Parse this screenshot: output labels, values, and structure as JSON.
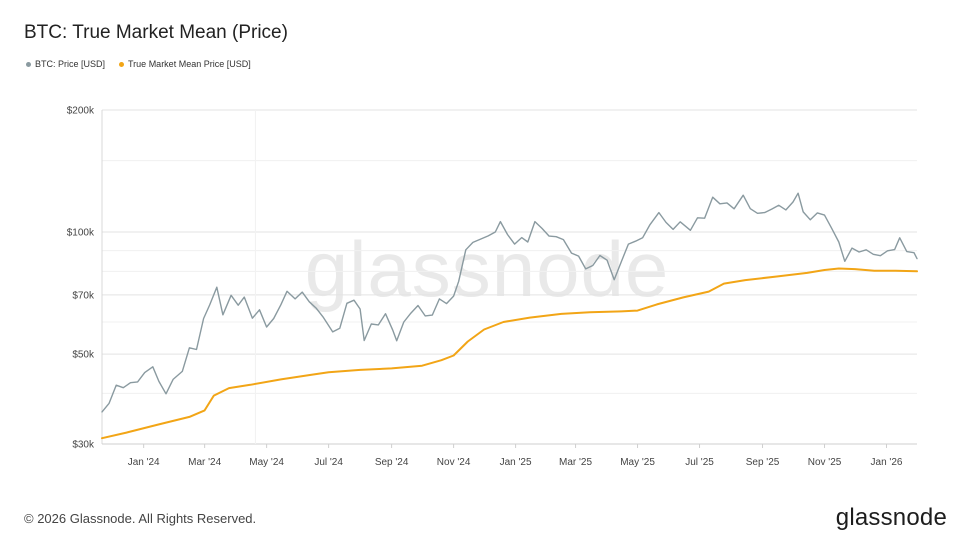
{
  "title": "BTC: True Market Mean (Price)",
  "legend": [
    {
      "label": "BTC: Price [USD]",
      "color": "#8a9aa0"
    },
    {
      "label": "True Market Mean Price [USD]",
      "color": "#f2a516"
    }
  ],
  "watermark": "glassnode",
  "footer": {
    "copyright": "© 2026 Glassnode. All Rights Reserved.",
    "brand": "glassnode"
  },
  "chart_data": {
    "type": "line",
    "title": "BTC: True Market Mean (Price)",
    "xlabel": "",
    "ylabel": "",
    "y_scale": "log",
    "ylim": [
      30000,
      200000
    ],
    "y_ticks": [
      {
        "value": 30000,
        "label": "$30k"
      },
      {
        "value": 50000,
        "label": "$50k"
      },
      {
        "value": 70000,
        "label": "$70k"
      },
      {
        "value": 100000,
        "label": "$100k"
      },
      {
        "value": 200000,
        "label": "$200k"
      }
    ],
    "xlim": [
      "2023-11-21",
      "2026-01-31"
    ],
    "x_ticks": [
      {
        "date": "2024-01-01",
        "label": "Jan '24"
      },
      {
        "date": "2024-03-01",
        "label": "Mar '24"
      },
      {
        "date": "2024-05-01",
        "label": "May '24"
      },
      {
        "date": "2024-07-01",
        "label": "Jul '24"
      },
      {
        "date": "2024-09-01",
        "label": "Sep '24"
      },
      {
        "date": "2024-11-01",
        "label": "Nov '24"
      },
      {
        "date": "2025-01-01",
        "label": "Jan '25"
      },
      {
        "date": "2025-03-01",
        "label": "Mar '25"
      },
      {
        "date": "2025-05-01",
        "label": "May '25"
      },
      {
        "date": "2025-07-01",
        "label": "Jul '25"
      },
      {
        "date": "2025-09-01",
        "label": "Sep '25"
      },
      {
        "date": "2025-11-01",
        "label": "Nov '25"
      },
      {
        "date": "2026-01-01",
        "label": "Jan '26"
      }
    ],
    "grid": true,
    "legend_position": "top-left",
    "series": [
      {
        "name": "BTC: Price [USD]",
        "color": "#8a9aa0",
        "points": [
          [
            "2023-11-21",
            36000
          ],
          [
            "2023-11-28",
            37800
          ],
          [
            "2023-12-05",
            41900
          ],
          [
            "2023-12-12",
            41300
          ],
          [
            "2023-12-19",
            42500
          ],
          [
            "2023-12-26",
            42700
          ],
          [
            "2024-01-02",
            45000
          ],
          [
            "2024-01-10",
            46500
          ],
          [
            "2024-01-16",
            42800
          ],
          [
            "2024-01-23",
            39900
          ],
          [
            "2024-01-30",
            43300
          ],
          [
            "2024-02-08",
            45300
          ],
          [
            "2024-02-15",
            51800
          ],
          [
            "2024-02-22",
            51300
          ],
          [
            "2024-02-29",
            61200
          ],
          [
            "2024-03-06",
            66100
          ],
          [
            "2024-03-13",
            73100
          ],
          [
            "2024-03-19",
            62500
          ],
          [
            "2024-03-27",
            69800
          ],
          [
            "2024-04-03",
            66000
          ],
          [
            "2024-04-09",
            69100
          ],
          [
            "2024-04-17",
            61300
          ],
          [
            "2024-04-24",
            64300
          ],
          [
            "2024-05-01",
            58300
          ],
          [
            "2024-05-08",
            61200
          ],
          [
            "2024-05-15",
            66200
          ],
          [
            "2024-05-21",
            71400
          ],
          [
            "2024-05-29",
            68400
          ],
          [
            "2024-06-05",
            71100
          ],
          [
            "2024-06-12",
            67300
          ],
          [
            "2024-06-19",
            64800
          ],
          [
            "2024-06-26",
            61500
          ],
          [
            "2024-07-05",
            56700
          ],
          [
            "2024-07-12",
            57900
          ],
          [
            "2024-07-19",
            66700
          ],
          [
            "2024-07-26",
            67900
          ],
          [
            "2024-08-01",
            64600
          ],
          [
            "2024-08-05",
            54000
          ],
          [
            "2024-08-12",
            59300
          ],
          [
            "2024-08-19",
            59000
          ],
          [
            "2024-08-26",
            62900
          ],
          [
            "2024-09-02",
            57400
          ],
          [
            "2024-09-06",
            53900
          ],
          [
            "2024-09-13",
            60000
          ],
          [
            "2024-09-20",
            63100
          ],
          [
            "2024-09-27",
            65900
          ],
          [
            "2024-10-04",
            62100
          ],
          [
            "2024-10-11",
            62400
          ],
          [
            "2024-10-18",
            68400
          ],
          [
            "2024-10-25",
            66600
          ],
          [
            "2024-11-01",
            69500
          ],
          [
            "2024-11-06",
            75600
          ],
          [
            "2024-11-13",
            90400
          ],
          [
            "2024-11-20",
            94300
          ],
          [
            "2024-11-27",
            95900
          ],
          [
            "2024-12-05",
            97800
          ],
          [
            "2024-12-12",
            100000
          ],
          [
            "2024-12-17",
            106100
          ],
          [
            "2024-12-24",
            98600
          ],
          [
            "2024-12-31",
            93400
          ],
          [
            "2025-01-07",
            96900
          ],
          [
            "2025-01-13",
            94500
          ],
          [
            "2025-01-20",
            106100
          ],
          [
            "2025-01-27",
            102100
          ],
          [
            "2025-02-03",
            97700
          ],
          [
            "2025-02-10",
            97400
          ],
          [
            "2025-02-17",
            95800
          ],
          [
            "2025-02-25",
            88700
          ],
          [
            "2025-03-04",
            87200
          ],
          [
            "2025-03-11",
            81100
          ],
          [
            "2025-03-18",
            82700
          ],
          [
            "2025-03-25",
            87500
          ],
          [
            "2025-04-01",
            85200
          ],
          [
            "2025-04-08",
            76300
          ],
          [
            "2025-04-15",
            84500
          ],
          [
            "2025-04-22",
            93400
          ],
          [
            "2025-04-29",
            94900
          ],
          [
            "2025-05-06",
            96800
          ],
          [
            "2025-05-13",
            104000
          ],
          [
            "2025-05-22",
            111700
          ],
          [
            "2025-05-29",
            105600
          ],
          [
            "2025-06-05",
            101500
          ],
          [
            "2025-06-12",
            106000
          ],
          [
            "2025-06-22",
            101000
          ],
          [
            "2025-06-29",
            108400
          ],
          [
            "2025-07-06",
            108200
          ],
          [
            "2025-07-14",
            121900
          ],
          [
            "2025-07-21",
            117400
          ],
          [
            "2025-07-28",
            118000
          ],
          [
            "2025-08-04",
            114100
          ],
          [
            "2025-08-13",
            123300
          ],
          [
            "2025-08-20",
            114200
          ],
          [
            "2025-08-27",
            111200
          ],
          [
            "2025-09-03",
            111700
          ],
          [
            "2025-09-10",
            113900
          ],
          [
            "2025-09-17",
            116400
          ],
          [
            "2025-09-24",
            113400
          ],
          [
            "2025-10-01",
            118600
          ],
          [
            "2025-10-06",
            124700
          ],
          [
            "2025-10-11",
            112100
          ],
          [
            "2025-10-18",
            107200
          ],
          [
            "2025-10-25",
            111500
          ],
          [
            "2025-11-01",
            110100
          ],
          [
            "2025-11-08",
            102200
          ],
          [
            "2025-11-15",
            94500
          ],
          [
            "2025-11-21",
            84700
          ],
          [
            "2025-11-28",
            91300
          ],
          [
            "2025-12-05",
            89300
          ],
          [
            "2025-12-12",
            90400
          ],
          [
            "2025-12-19",
            88100
          ],
          [
            "2025-12-26",
            87400
          ],
          [
            "2026-01-02",
            89900
          ],
          [
            "2026-01-09",
            90500
          ],
          [
            "2026-01-14",
            96800
          ],
          [
            "2026-01-21",
            89500
          ],
          [
            "2026-01-28",
            88900
          ],
          [
            "2026-01-31",
            86000
          ]
        ]
      },
      {
        "name": "True Market Mean Price [USD]",
        "color": "#f2a516",
        "points": [
          [
            "2023-11-21",
            31000
          ],
          [
            "2023-12-15",
            32000
          ],
          [
            "2024-01-15",
            33500
          ],
          [
            "2024-02-15",
            35000
          ],
          [
            "2024-03-01",
            36300
          ],
          [
            "2024-03-10",
            39500
          ],
          [
            "2024-03-25",
            41200
          ],
          [
            "2024-04-15",
            42000
          ],
          [
            "2024-05-15",
            43300
          ],
          [
            "2024-06-15",
            44500
          ],
          [
            "2024-07-01",
            45100
          ],
          [
            "2024-08-01",
            45700
          ],
          [
            "2024-09-01",
            46100
          ],
          [
            "2024-10-01",
            46800
          ],
          [
            "2024-10-20",
            48300
          ],
          [
            "2024-11-01",
            49600
          ],
          [
            "2024-11-15",
            53700
          ],
          [
            "2024-12-01",
            57500
          ],
          [
            "2024-12-20",
            60000
          ],
          [
            "2025-01-15",
            61500
          ],
          [
            "2025-02-15",
            62800
          ],
          [
            "2025-03-15",
            63400
          ],
          [
            "2025-04-15",
            63700
          ],
          [
            "2025-05-01",
            64000
          ],
          [
            "2025-05-20",
            66300
          ],
          [
            "2025-06-15",
            69000
          ],
          [
            "2025-07-10",
            71300
          ],
          [
            "2025-07-25",
            74600
          ],
          [
            "2025-08-15",
            76100
          ],
          [
            "2025-09-15",
            77700
          ],
          [
            "2025-10-15",
            79300
          ],
          [
            "2025-11-01",
            80600
          ],
          [
            "2025-11-15",
            81300
          ],
          [
            "2025-12-01",
            81000
          ],
          [
            "2025-12-20",
            80300
          ],
          [
            "2026-01-10",
            80300
          ],
          [
            "2026-01-31",
            80000
          ]
        ]
      }
    ]
  }
}
